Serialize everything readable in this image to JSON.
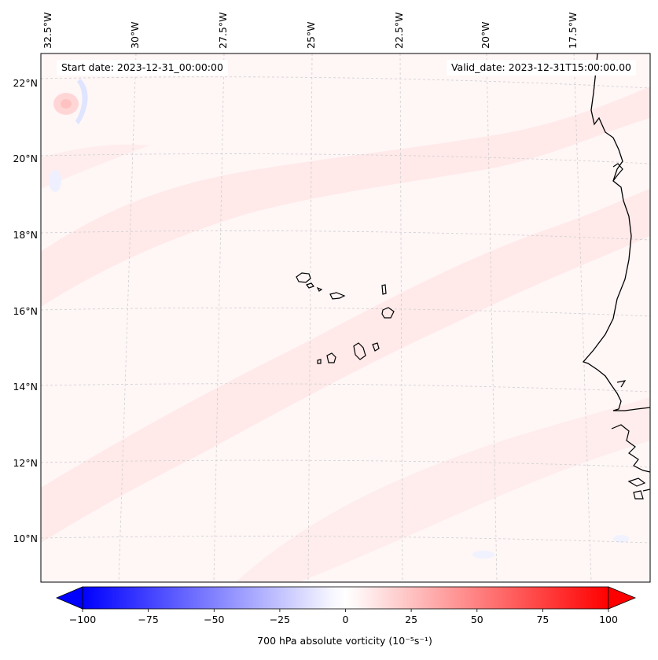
{
  "header": {
    "start_date": "Start date: 2023-12-31_00:00:00",
    "valid_date": "Valid_date: 2023-12-31T15:00:00.00"
  },
  "map": {
    "field": "700 hPa absolute vorticity",
    "lat_labels": [
      "22°N",
      "20°N",
      "18°N",
      "16°N",
      "14°N",
      "12°N",
      "10°N"
    ],
    "lon_labels": [
      "32.5°W",
      "30°W",
      "27.5°W",
      "25°W",
      "22.5°W",
      "20°W",
      "17.5°W"
    ],
    "gridlines": "dashed",
    "coastline_color": "#000000"
  },
  "colorbar": {
    "label": "700 hPa absolute vorticity (10⁻⁵s⁻¹)",
    "ticks": [
      "−100",
      "−75",
      "−50",
      "−25",
      "0",
      "25",
      "50",
      "75",
      "100"
    ],
    "min": -100,
    "max": 100,
    "extend": "both",
    "low_color": "#0000ff",
    "high_color": "#ff0000",
    "mid_color": "#ffffff"
  }
}
